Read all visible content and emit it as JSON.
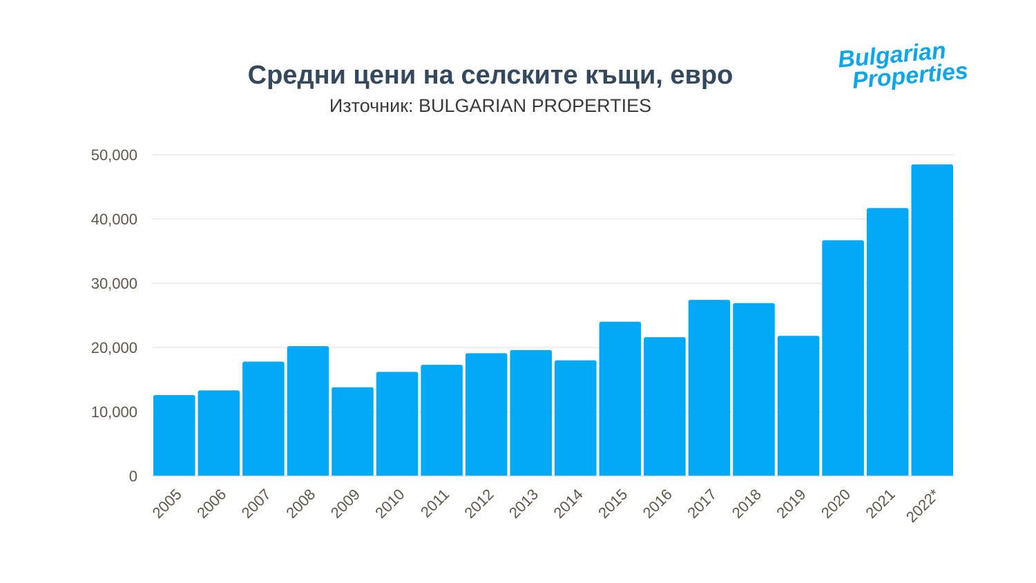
{
  "logo": {
    "text": "Bulgarian Properties",
    "color": "#0fa6e8"
  },
  "chart_data": {
    "type": "bar",
    "title": "Средни цени на селските къщи, евро",
    "subtitle": "Източник: BULGARIAN PROPERTIES",
    "xlabel": "",
    "ylabel": "",
    "ylim": [
      0,
      50000
    ],
    "yticks": [
      0,
      10000,
      20000,
      30000,
      40000,
      50000
    ],
    "ytick_labels": [
      "0",
      "10,000",
      "20,000",
      "30,000",
      "40,000",
      "50,000"
    ],
    "grid": true,
    "bar_color": "#03a9f4",
    "categories": [
      "2005",
      "2006",
      "2007",
      "2008",
      "2009",
      "2010",
      "2011",
      "2012",
      "2013",
      "2014",
      "2015",
      "2016",
      "2017",
      "2018",
      "2019",
      "2020",
      "2021",
      "2022*"
    ],
    "values": [
      12600,
      13300,
      17800,
      20200,
      13800,
      16200,
      17300,
      19100,
      19600,
      18000,
      24000,
      21600,
      27400,
      26900,
      21800,
      36700,
      41700,
      48500
    ]
  }
}
